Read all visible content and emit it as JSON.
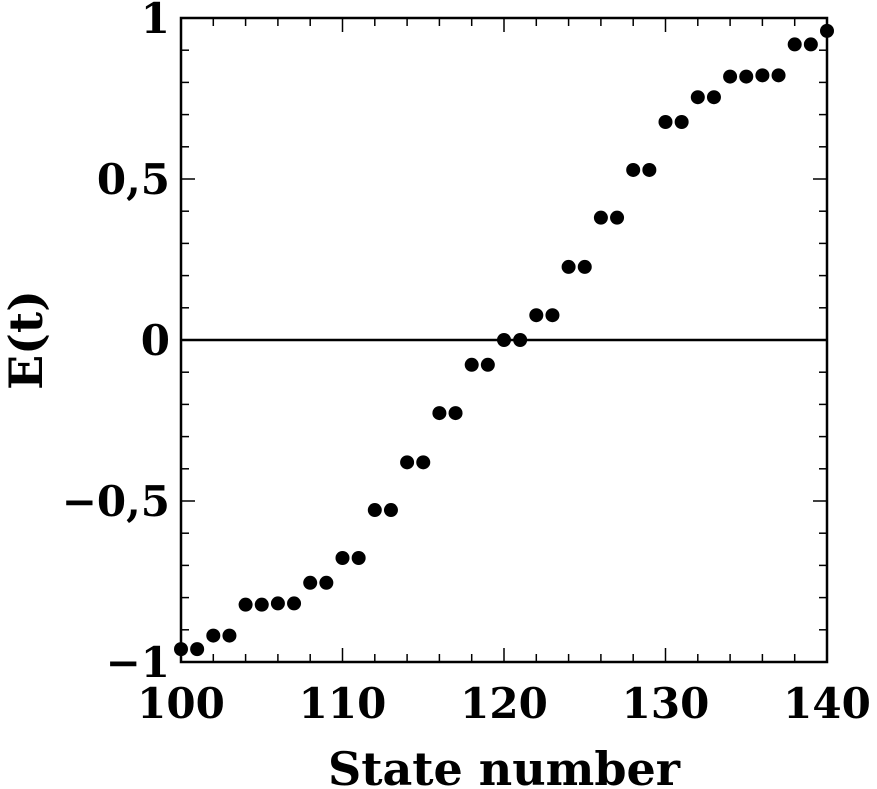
{
  "chart_data": {
    "type": "scatter",
    "xlabel": "State number",
    "ylabel": "E(t)",
    "xlim": [
      100,
      140
    ],
    "ylim": [
      -1,
      1
    ],
    "x_ticks": [
      {
        "value": 100,
        "label": "100"
      },
      {
        "value": 110,
        "label": "110"
      },
      {
        "value": 120,
        "label": "120"
      },
      {
        "value": 130,
        "label": "130"
      },
      {
        "value": 140,
        "label": "140"
      }
    ],
    "y_ticks": [
      {
        "value": 1,
        "label": "1"
      },
      {
        "value": 0.5,
        "label": "0,5"
      },
      {
        "value": 0,
        "label": "0"
      },
      {
        "value": -0.5,
        "label": "−0,5"
      },
      {
        "value": -1,
        "label": "−1"
      }
    ],
    "zero_line": true,
    "grid": false,
    "marker_color": "#000000",
    "series": [
      {
        "x": [
          100,
          101,
          102,
          103,
          104,
          105,
          106,
          107,
          108,
          109,
          110,
          111,
          112,
          113,
          114,
          115,
          116,
          117,
          118,
          119,
          120,
          121,
          122,
          123,
          124,
          125,
          126,
          127,
          128,
          129,
          130,
          131,
          132,
          133,
          134,
          135,
          136,
          137,
          138,
          139,
          140
        ],
        "y": [
          -0.96,
          -0.96,
          -0.918,
          -0.918,
          -0.822,
          -0.822,
          -0.818,
          -0.818,
          -0.754,
          -0.754,
          -0.677,
          -0.677,
          -0.528,
          -0.528,
          -0.38,
          -0.38,
          -0.227,
          -0.227,
          -0.077,
          -0.077,
          0,
          0,
          0.077,
          0.077,
          0.227,
          0.227,
          0.38,
          0.38,
          0.528,
          0.528,
          0.677,
          0.677,
          0.754,
          0.754,
          0.818,
          0.818,
          0.822,
          0.822,
          0.918,
          0.918,
          0.96
        ]
      }
    ]
  }
}
